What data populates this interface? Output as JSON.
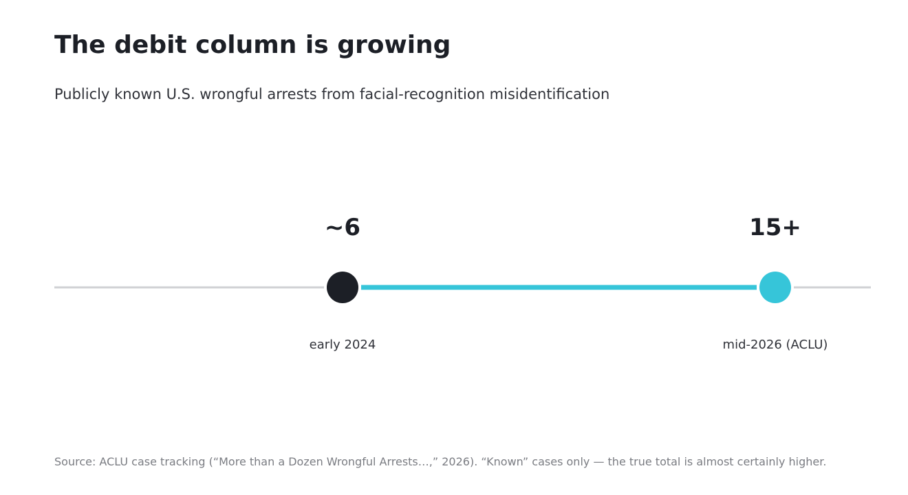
{
  "title": "The debit column is growing",
  "subtitle": "Publicly known U.S. wrongful arrests from facial-recognition misidentification",
  "source": "Source: ACLU case tracking (“More than a Dozen Wrongful Arrests…,” 2026). “Known” cases only — the true total is almost certainly higher.",
  "chart_data": {
    "type": "line",
    "title": "The debit column is growing",
    "subtitle": "Publicly known U.S. wrongful arrests from facial-recognition misidentification",
    "xlabel": "",
    "ylabel": "",
    "points": [
      {
        "x": "early 2024",
        "value": 6,
        "value_label": "~6",
        "color": "#1c1f26"
      },
      {
        "x": "mid-2026 (ACLU)",
        "value": 15,
        "value_label": "15+",
        "color": "#36c5d9"
      }
    ],
    "colors": {
      "baseline": "#cfd0d4",
      "progress": "#36c5d9"
    },
    "grid": false,
    "legend": "none"
  }
}
